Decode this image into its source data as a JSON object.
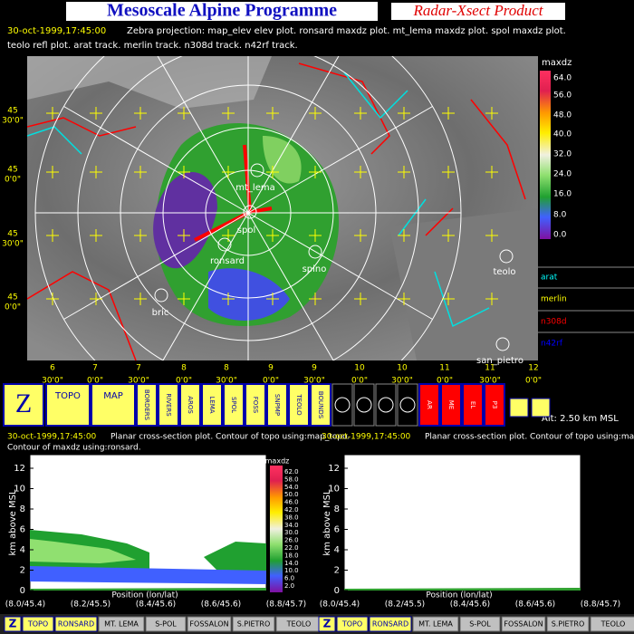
{
  "header": {
    "title": "Mesoscale Alpine Programme",
    "product": "Radar-Xsect Product"
  },
  "info": {
    "time": "30-oct-1999,17:45:00",
    "line1": "Zebra projection: map_elev elev plot.  ronsard maxdz plot.  mt_lema maxdz plot.  spol maxdz plot.",
    "line2": "teolo refl plot. arat track.   merlin track.   n308d track.   n42rf track."
  },
  "map": {
    "colorbar_title": "maxdz",
    "colorbar_labels": [
      "64.0",
      "56.0",
      "48.0",
      "40.0",
      "32.0",
      "24.0",
      "16.0",
      "8.0",
      "0.0"
    ],
    "tracks": [
      {
        "name": "arat",
        "color": "#00ffff"
      },
      {
        "name": "merlin",
        "color": "#ffff00"
      },
      {
        "name": "n308d",
        "color": "#ff0000"
      },
      {
        "name": "n42rf",
        "color": "#0000ff"
      }
    ],
    "lat_labels": [
      [
        "45",
        "30'0\""
      ],
      [
        "45",
        "0'0\""
      ],
      [
        "45",
        "30'0\""
      ],
      [
        "45",
        "0'0\""
      ]
    ],
    "lon_labels": [
      [
        "6",
        "30'0\""
      ],
      [
        "7",
        "0'0\""
      ],
      [
        "7",
        "30'0\""
      ],
      [
        "8",
        "0'0\""
      ],
      [
        "8",
        "30'0\""
      ],
      [
        "9",
        "0'0\""
      ],
      [
        "9",
        "30'0\""
      ],
      [
        "10",
        "0'0\""
      ],
      [
        "10",
        "30'0\""
      ],
      [
        "11",
        "0'0\""
      ],
      [
        "11",
        "30'0\""
      ],
      [
        "12",
        "0'0\""
      ]
    ],
    "stations": [
      "mt_lema",
      "spol",
      "ronsard",
      "spino",
      "bric",
      "teolo",
      "san_pietro"
    ]
  },
  "toolbar": {
    "buttons": [
      "TOPO",
      "MAP",
      "BORDERS",
      "RIVERS",
      "AROS",
      "LEMA",
      "SPOL",
      "FOSS",
      "SNPMP",
      "TEOLO",
      "BOUNDS",
      "AR",
      "ME",
      "EL",
      "P3"
    ],
    "altitude": "Alt: 2.50 km MSL"
  },
  "panels": [
    {
      "time": "30-oct-1999,17:45:00",
      "line1": "Planar cross-section plot.  Contour of topo using:map_topo.",
      "line2": "Contour of maxdz using:ronsard.",
      "yticks": [
        "0",
        "2",
        "4",
        "6",
        "8",
        "10",
        "12"
      ],
      "ylabel": "km above MSL",
      "xlabel": "Position (lon/lat)",
      "xticks": [
        "(8.0/45.4)",
        "(8.2/45.5)",
        "(8.4/45.6)",
        "(8.6/45.6)",
        "(8.8/45.7)"
      ],
      "colorbar_title": "maxdz",
      "colorbar_labels": [
        "62.0",
        "58.0",
        "54.0",
        "50.0",
        "46.0",
        "42.0",
        "38.0",
        "34.0",
        "30.0",
        "26.0",
        "22.0",
        "18.0",
        "14.0",
        "10.0",
        "6.0",
        "2.0"
      ]
    },
    {
      "time": "30-oct-1999,17:45:00",
      "line1": "Planar cross-section plot.  Contour of topo using:map_topo.",
      "yticks": [
        "0",
        "2",
        "4",
        "6",
        "8",
        "10",
        "12"
      ],
      "ylabel": "km above MSL",
      "xlabel": "Position (lon/lat)",
      "xticks": [
        "(8.0/45.4)",
        "(8.2/45.5)",
        "(8.4/45.6)",
        "(8.6/45.6)",
        "(8.8/45.7)"
      ]
    }
  ],
  "bottom_bar": {
    "buttons": [
      "TOPO",
      "RONSARD",
      "MT. LEMA",
      "S-POL",
      "FOSSALON",
      "S.PIETRO",
      "TEOLO"
    ]
  }
}
